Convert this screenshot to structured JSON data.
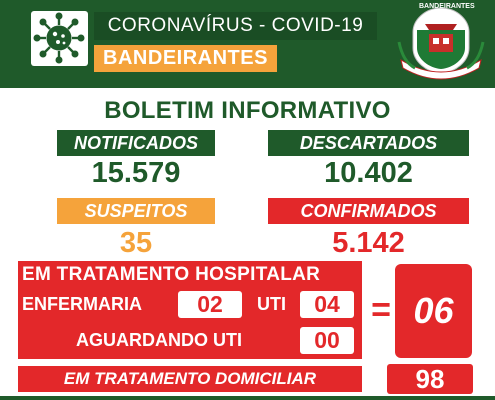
{
  "header": {
    "title": "CORONAVÍRUS - COVID-19",
    "city": "BANDEIRANTES",
    "crest_text": "BANDEIRANTES",
    "virus_icon": "virus-icon",
    "crest_icon": "municipal-crest-icon"
  },
  "bulletin_title": "BOLETIM INFORMATIVO",
  "stats": {
    "notificados_label": "NOTIFICADOS",
    "notificados_value": "15.579",
    "descartados_label": "DESCARTADOS",
    "descartados_value": "10.402",
    "suspeitos_label": "SUSPEITOS",
    "suspeitos_value": "35",
    "confirmados_label": "CONFIRMADOS",
    "confirmados_value": "5.142"
  },
  "hospital": {
    "title": "EM TRATAMENTO HOSPITALAR",
    "enfermaria_label": "ENFERMARIA",
    "enfermaria_value": "02",
    "uti_label": "UTI",
    "uti_value": "04",
    "aguardando_label": "AGUARDANDO UTI",
    "aguardando_value": "00",
    "equals": "=",
    "total": "06"
  },
  "domiciliar": {
    "label": "EM TRATAMENTO DOMICILIAR",
    "value": "98"
  },
  "colors": {
    "green": "#1f5a2a",
    "orange": "#f5a33b",
    "red": "#e3282a"
  }
}
